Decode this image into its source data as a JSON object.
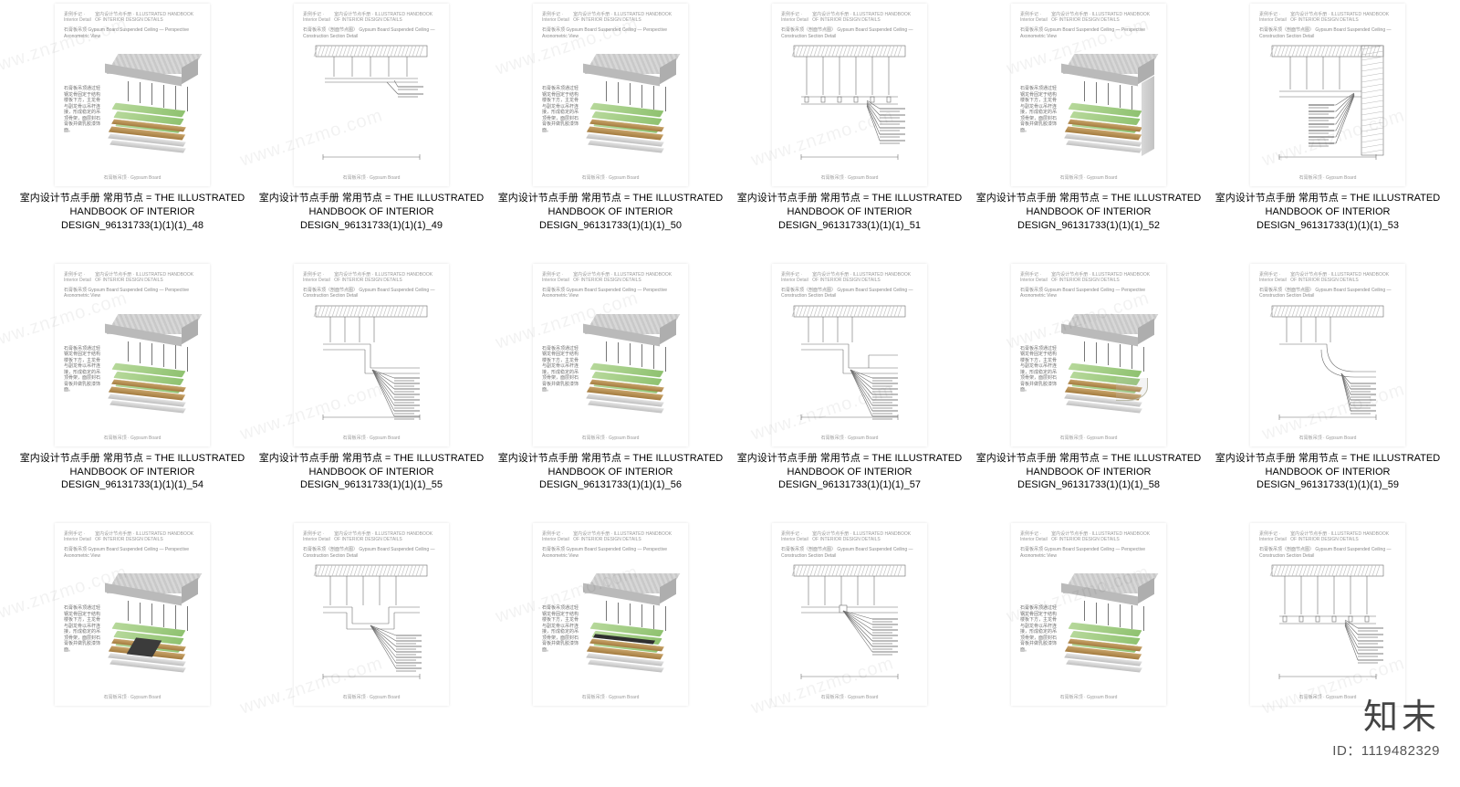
{
  "watermark_text": "www.znzmo.com",
  "brand": {
    "cn": "知末",
    "id_label": "ID：1119482329"
  },
  "thumb_header": {
    "left": "素例手记 · Interior Detail",
    "right": "室内设计节点手册  ·  ILLUSTRATED HANDBOOK OF INTERIOR DESIGN DETAILS"
  },
  "thumb_subtitle_perspective": "石膏板吊顶\nGypsum Board Suspended Ceiling — Perspective Axonometric View",
  "thumb_subtitle_section": "石膏板吊顶（剖面节点图）\nGypsum Board Suspended Ceiling — Construction Section Detail",
  "thumb_side_text": "石膏板吊顶通过轻钢龙骨固定于结构楼板下方，主龙骨与副龙骨以吊杆连接，形成稳定的吊顶骨架，面层封石膏板并做乳胶漆饰面。",
  "thumb_footer": "石膏板吊顶 · Gypsum Board",
  "caption_prefix": "室内设计节点手册  常用节点  =  THE ILLUSTRATED HANDBOOK OF INTERIOR DESIGN_96131733(1)(1)(1)_",
  "items": [
    {
      "n": "48",
      "kind": "iso",
      "row": 1
    },
    {
      "n": "49",
      "kind": "line",
      "row": 1,
      "variant": "flat"
    },
    {
      "n": "50",
      "kind": "iso",
      "row": 1
    },
    {
      "n": "51",
      "kind": "line",
      "row": 1,
      "variant": "hang"
    },
    {
      "n": "52",
      "kind": "iso",
      "row": 1,
      "wall": true
    },
    {
      "n": "53",
      "kind": "line",
      "row": 1,
      "variant": "wall"
    },
    {
      "n": "54",
      "kind": "iso",
      "row": 2
    },
    {
      "n": "55",
      "kind": "line",
      "row": 2,
      "variant": "step"
    },
    {
      "n": "56",
      "kind": "iso",
      "row": 2
    },
    {
      "n": "57",
      "kind": "line",
      "row": 2,
      "variant": "step2"
    },
    {
      "n": "58",
      "kind": "iso",
      "row": 2,
      "curve": true
    },
    {
      "n": "59",
      "kind": "line",
      "row": 2,
      "variant": "curve"
    },
    {
      "n": "",
      "kind": "iso",
      "row": 3,
      "recess": true
    },
    {
      "n": "",
      "kind": "line",
      "row": 3,
      "variant": "recess"
    },
    {
      "n": "",
      "kind": "iso",
      "row": 3,
      "slot": true
    },
    {
      "n": "",
      "kind": "line",
      "row": 3,
      "variant": "slot"
    },
    {
      "n": "",
      "kind": "iso",
      "row": 3
    },
    {
      "n": "",
      "kind": "line",
      "row": 3,
      "variant": "hang"
    }
  ],
  "colors": {
    "concrete_top": "#d2d2d2",
    "concrete_front": "#bababa",
    "concrete_side": "#aeaeae",
    "green_light": "#b6d89a",
    "green_dark": "#8fc270",
    "wood_light": "#c9a46a",
    "wood_dark": "#a37b3f",
    "metal_light": "#e4e4e4",
    "metal_dark": "#bfbfbf",
    "line": "#6d6d6d",
    "hatch": "#bcbcbc",
    "text": "#000000",
    "text_muted": "#8a8a8a",
    "watermark": "rgba(0,0,0,0.05)"
  }
}
